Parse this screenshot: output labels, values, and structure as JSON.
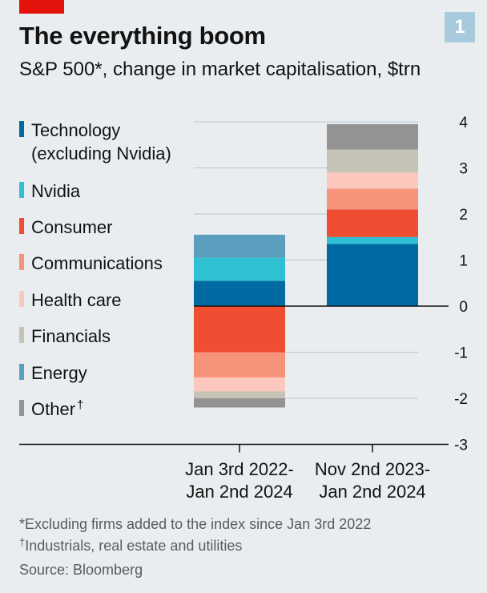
{
  "header": {
    "title": "The everything boom",
    "subtitle": "S&P 500*, change in market capitalisation, $trn",
    "badge": "1"
  },
  "colors": {
    "tag": "#e3120b",
    "badge": "#a7cbdd"
  },
  "chart_data": {
    "type": "bar",
    "stacked": true,
    "title": "The everything boom",
    "subtitle": "S&P 500*, change in market capitalisation, $trn",
    "ylabel": "$trn",
    "ylim": [
      -3,
      4
    ],
    "yticks": [
      {
        "value": 4,
        "label": "4"
      },
      {
        "value": 3,
        "label": "3"
      },
      {
        "value": 2,
        "label": "2"
      },
      {
        "value": 1,
        "label": "1"
      },
      {
        "value": 0,
        "label": "0"
      },
      {
        "value": -1,
        "label": "-1"
      },
      {
        "value": -2,
        "label": "-2"
      },
      {
        "value": -3,
        "label": "-3"
      }
    ],
    "grid": true,
    "legend_position": "left",
    "categories": [
      [
        "Jan 3rd 2022-",
        "Jan 2nd 2024"
      ],
      [
        "Nov 2nd 2023-",
        "Jan 2nd 2024"
      ]
    ],
    "series": [
      {
        "name": "Technology",
        "name_line2": "(excluding Nvidia)",
        "color": "#006ba2",
        "values": [
          0.55,
          1.35
        ]
      },
      {
        "name": "Nvidia",
        "color": "#2fc1d3",
        "values": [
          0.5,
          0.15
        ]
      },
      {
        "name": "Consumer",
        "color": "#f04e33",
        "values": [
          -1.0,
          0.6
        ]
      },
      {
        "name": "Communications",
        "color": "#f6937a",
        "values": [
          -0.55,
          0.45
        ]
      },
      {
        "name": "Health care",
        "color": "#fcc8bd",
        "values": [
          -0.3,
          0.35
        ]
      },
      {
        "name": "Financials",
        "color": "#c5c3b5",
        "values": [
          -0.15,
          0.5
        ]
      },
      {
        "name": "Energy",
        "color": "#5b9fbf",
        "values": [
          0.5,
          0
        ]
      },
      {
        "name": "Other",
        "marker": "†",
        "color": "#939393",
        "values": [
          -0.2,
          0.55
        ]
      }
    ]
  },
  "footnotes": {
    "excluding": "*Excluding firms added to the index since Jan 3rd 2022",
    "other_marker": "†",
    "other": "Industrials, real estate and utilities",
    "source": "Source: Bloomberg"
  }
}
